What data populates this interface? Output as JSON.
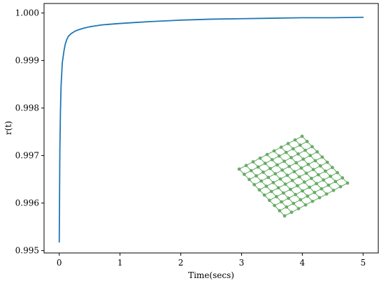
{
  "chart_data": {
    "type": "line",
    "title": "",
    "xlabel": "Time(secs)",
    "ylabel": "r(t)",
    "xlim": [
      -0.25,
      5.25
    ],
    "ylim": [
      0.99495,
      1.0002
    ],
    "xticks": [
      0,
      1,
      2,
      3,
      4,
      5
    ],
    "xtick_labels": [
      "0",
      "1",
      "2",
      "3",
      "4",
      "5"
    ],
    "yticks": [
      0.995,
      0.996,
      0.997,
      0.998,
      0.999,
      1.0
    ],
    "ytick_labels": [
      "0.995",
      "0.996",
      "0.997",
      "0.998",
      "0.999",
      "1.000"
    ],
    "grid": false,
    "series": [
      {
        "color": "#1f77b4",
        "x": [
          0.0,
          0.01,
          0.02,
          0.03,
          0.05,
          0.08,
          0.1,
          0.12,
          0.15,
          0.2,
          0.25,
          0.3,
          0.35,
          0.4,
          0.5,
          0.6,
          0.7,
          0.8,
          1.0,
          1.25,
          1.5,
          2.0,
          2.5,
          3.0,
          3.5,
          4.0,
          4.5,
          5.0
        ],
        "y": [
          0.99518,
          0.99712,
          0.99795,
          0.99846,
          0.99895,
          0.99922,
          0.99935,
          0.99943,
          0.99951,
          0.99957,
          0.99961,
          0.99964,
          0.99966,
          0.99968,
          0.99971,
          0.99973,
          0.99975,
          0.99976,
          0.99978,
          0.9998,
          0.99982,
          0.99985,
          0.99987,
          0.99988,
          0.99989,
          0.9999,
          0.9999,
          0.99991
        ]
      }
    ],
    "inset": {
      "type": "grid-lattice",
      "color": "#5fa85f",
      "rows": 10,
      "cols": 10
    }
  }
}
